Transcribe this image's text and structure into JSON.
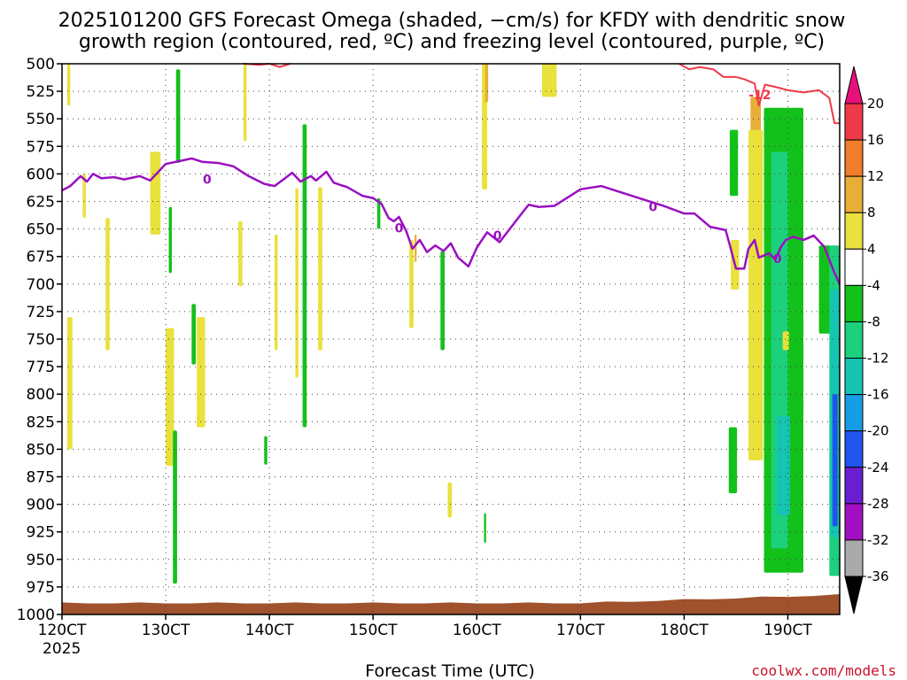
{
  "chart_data": {
    "type": "heatmap",
    "title_line1": "2025101200 GFS Forecast Omega (shaded, −cm/s) for KFDY with dendritic snow",
    "title_line2": "growth region (contoured, red, ºC) and freezing level (contoured, purple, ºC)",
    "xlabel": "Forecast Time (UTC)",
    "x_year_label": "2025",
    "watermark": "coolwx.com/models",
    "x_range": [
      0,
      7.5
    ],
    "y_range_hpa": [
      1000,
      500
    ],
    "y_ticks": [
      500,
      525,
      550,
      575,
      600,
      625,
      650,
      675,
      700,
      725,
      750,
      775,
      800,
      825,
      850,
      875,
      900,
      925,
      950,
      975,
      1000
    ],
    "x_ticks": [
      {
        "x": 0,
        "label": "120CT"
      },
      {
        "x": 1,
        "label": "130CT"
      },
      {
        "x": 2,
        "label": "140CT"
      },
      {
        "x": 3,
        "label": "150CT"
      },
      {
        "x": 4,
        "label": "160CT"
      },
      {
        "x": 5,
        "label": "170CT"
      },
      {
        "x": 6,
        "label": "180CT"
      },
      {
        "x": 7,
        "label": "190CT"
      }
    ],
    "grid": true,
    "colorbar": {
      "levels": [
        20,
        16,
        12,
        8,
        4,
        -4,
        -8,
        -12,
        -16,
        -20,
        -24,
        -28,
        -32,
        -36
      ],
      "colors": [
        "#ee3a48",
        "#ef7d2a",
        "#e7ae38",
        "#e9e13c",
        "#ffffff",
        "#13c11b",
        "#1cd07e",
        "#15c4b3",
        "#179de6",
        "#1f55ee",
        "#6a1ed2",
        "#a20fc0",
        "#aaaaaa"
      ],
      "top_arrow_color": "#e8107a",
      "bottom_arrow_color": "#000000"
    },
    "freezing_level_label": "0",
    "dgz_label": "-12",
    "freezing_level": [
      [
        0.0,
        615
      ],
      [
        0.08,
        611
      ],
      [
        0.18,
        602
      ],
      [
        0.24,
        607
      ],
      [
        0.3,
        600
      ],
      [
        0.38,
        604
      ],
      [
        0.5,
        603
      ],
      [
        0.6,
        605
      ],
      [
        0.75,
        602
      ],
      [
        0.85,
        606
      ],
      [
        1.0,
        591
      ],
      [
        1.15,
        588
      ],
      [
        1.25,
        586
      ],
      [
        1.35,
        589
      ],
      [
        1.5,
        590
      ],
      [
        1.65,
        593
      ],
      [
        1.8,
        602
      ],
      [
        1.95,
        609
      ],
      [
        2.05,
        611
      ],
      [
        2.15,
        604
      ],
      [
        2.22,
        599
      ],
      [
        2.3,
        607
      ],
      [
        2.4,
        602
      ],
      [
        2.45,
        606
      ],
      [
        2.55,
        598
      ],
      [
        2.62,
        608
      ],
      [
        2.75,
        612
      ],
      [
        2.9,
        620
      ],
      [
        3.0,
        622
      ],
      [
        3.08,
        627
      ],
      [
        3.15,
        640
      ],
      [
        3.2,
        643
      ],
      [
        3.25,
        639
      ],
      [
        3.32,
        652
      ],
      [
        3.38,
        668
      ],
      [
        3.45,
        660
      ],
      [
        3.52,
        671
      ],
      [
        3.6,
        665
      ],
      [
        3.68,
        670
      ],
      [
        3.75,
        663
      ],
      [
        3.82,
        676
      ],
      [
        3.92,
        684
      ],
      [
        4.0,
        667
      ],
      [
        4.1,
        653
      ],
      [
        4.22,
        662
      ],
      [
        4.4,
        640
      ],
      [
        4.5,
        628
      ],
      [
        4.6,
        630
      ],
      [
        4.75,
        629
      ],
      [
        4.9,
        620
      ],
      [
        5.0,
        614
      ],
      [
        5.2,
        611
      ],
      [
        5.4,
        617
      ],
      [
        5.6,
        623
      ],
      [
        5.8,
        629
      ],
      [
        6.0,
        636
      ],
      [
        6.1,
        636
      ],
      [
        6.25,
        648
      ],
      [
        6.4,
        651
      ],
      [
        6.45,
        668
      ],
      [
        6.5,
        686
      ],
      [
        6.58,
        686
      ],
      [
        6.62,
        668
      ],
      [
        6.68,
        660
      ],
      [
        6.72,
        676
      ],
      [
        6.82,
        672
      ],
      [
        6.88,
        678
      ],
      [
        6.93,
        667
      ],
      [
        6.98,
        660
      ],
      [
        7.05,
        657
      ],
      [
        7.15,
        660
      ],
      [
        7.25,
        656
      ],
      [
        7.35,
        666
      ],
      [
        7.45,
        690
      ],
      [
        7.5,
        700
      ]
    ],
    "dendritic_contour": [
      [
        5.95,
        500
      ],
      [
        6.05,
        505
      ],
      [
        6.15,
        503
      ],
      [
        6.28,
        505
      ],
      [
        6.38,
        512
      ],
      [
        6.5,
        512
      ],
      [
        6.58,
        514
      ],
      [
        6.68,
        518
      ],
      [
        6.72,
        538
      ],
      [
        6.78,
        519
      ],
      [
        6.88,
        521
      ],
      [
        7.0,
        524
      ],
      [
        7.15,
        526
      ],
      [
        7.3,
        524
      ],
      [
        7.4,
        531
      ],
      [
        7.45,
        554
      ],
      [
        7.5,
        554
      ]
    ],
    "dendritic_contour_2": [
      [
        1.75,
        500
      ],
      [
        1.9,
        501
      ],
      [
        2.0,
        500
      ],
      [
        2.1,
        503
      ],
      [
        2.2,
        500
      ]
    ],
    "omega_regions": [
      {
        "x": 0.05,
        "w": 0.03,
        "top": 500,
        "bot": 538,
        "c": "#e9e13c"
      },
      {
        "x": 0.2,
        "w": 0.03,
        "top": 600,
        "bot": 640,
        "c": "#e9e13c"
      },
      {
        "x": 0.42,
        "w": 0.04,
        "top": 640,
        "bot": 760,
        "c": "#e9e13c"
      },
      {
        "x": 0.05,
        "w": 0.05,
        "top": 730,
        "bot": 850,
        "c": "#e9e13c"
      },
      {
        "x": 0.85,
        "w": 0.1,
        "top": 580,
        "bot": 655,
        "c": "#e9e13c"
      },
      {
        "x": 1.0,
        "w": 0.08,
        "top": 740,
        "bot": 865,
        "c": "#e9e13c"
      },
      {
        "x": 1.03,
        "w": 0.03,
        "top": 630,
        "bot": 690,
        "c": "#13c11b"
      },
      {
        "x": 1.07,
        "w": 0.04,
        "top": 833,
        "bot": 972,
        "c": "#13c11b"
      },
      {
        "x": 1.1,
        "w": 0.04,
        "top": 505,
        "bot": 590,
        "c": "#13c11b"
      },
      {
        "x": 1.25,
        "w": 0.04,
        "top": 718,
        "bot": 773,
        "c": "#13c11b"
      },
      {
        "x": 1.3,
        "w": 0.08,
        "top": 730,
        "bot": 830,
        "c": "#e9e13c"
      },
      {
        "x": 1.7,
        "w": 0.04,
        "top": 643,
        "bot": 702,
        "c": "#e9e13c"
      },
      {
        "x": 1.75,
        "w": 0.03,
        "top": 500,
        "bot": 570,
        "c": "#e9e13c"
      },
      {
        "x": 2.05,
        "w": 0.03,
        "top": 655,
        "bot": 760,
        "c": "#e9e13c"
      },
      {
        "x": 2.25,
        "w": 0.03,
        "top": 613,
        "bot": 785,
        "c": "#e9e13c"
      },
      {
        "x": 2.32,
        "w": 0.04,
        "top": 555,
        "bot": 830,
        "c": "#13c11b"
      },
      {
        "x": 2.47,
        "w": 0.04,
        "top": 612,
        "bot": 760,
        "c": "#e9e13c"
      },
      {
        "x": 1.95,
        "w": 0.03,
        "top": 838,
        "bot": 864,
        "c": "#13c11b"
      },
      {
        "x": 3.04,
        "w": 0.03,
        "top": 622,
        "bot": 650,
        "c": "#13c11b"
      },
      {
        "x": 3.35,
        "w": 0.04,
        "top": 660,
        "bot": 740,
        "c": "#e9e13c"
      },
      {
        "x": 3.4,
        "w": 0.02,
        "top": 655,
        "bot": 680,
        "c": "#e7ae38"
      },
      {
        "x": 3.65,
        "w": 0.04,
        "top": 670,
        "bot": 760,
        "c": "#13c11b"
      },
      {
        "x": 3.72,
        "w": 0.04,
        "top": 880,
        "bot": 912,
        "c": "#e9e13c"
      },
      {
        "x": 4.05,
        "w": 0.05,
        "top": 500,
        "bot": 614,
        "c": "#e9e13c"
      },
      {
        "x": 4.08,
        "w": 0.03,
        "top": 500,
        "bot": 535,
        "c": "#e7ae38"
      },
      {
        "x": 4.63,
        "w": 0.14,
        "top": 500,
        "bot": 530,
        "c": "#e9e13c"
      },
      {
        "x": 4.07,
        "w": 0.02,
        "top": 908,
        "bot": 935,
        "c": "#13c11b"
      },
      {
        "x": 6.44,
        "w": 0.08,
        "top": 560,
        "bot": 620,
        "c": "#13c11b"
      },
      {
        "x": 6.45,
        "w": 0.08,
        "top": 660,
        "bot": 705,
        "c": "#e9e13c"
      },
      {
        "x": 6.43,
        "w": 0.08,
        "top": 830,
        "bot": 890,
        "c": "#13c11b"
      },
      {
        "x": 6.64,
        "w": 0.1,
        "top": 530,
        "bot": 625,
        "c": "#e7ae38"
      },
      {
        "x": 6.62,
        "w": 0.14,
        "top": 560,
        "bot": 860,
        "c": "#e9e13c"
      },
      {
        "x": 6.77,
        "w": 0.38,
        "top": 540,
        "bot": 962,
        "c": "#13c11b"
      },
      {
        "x": 6.84,
        "w": 0.16,
        "top": 580,
        "bot": 940,
        "c": "#1cd07e"
      },
      {
        "x": 6.9,
        "w": 0.12,
        "top": 820,
        "bot": 910,
        "c": "#15c4b3"
      },
      {
        "x": 7.05,
        "w": 0.1,
        "top": 730,
        "bot": 820,
        "c": "#13c11b"
      },
      {
        "x": 6.95,
        "w": 0.06,
        "top": 743,
        "bot": 760,
        "c": "#e9e13c"
      },
      {
        "x": 7.3,
        "w": 0.12,
        "top": 665,
        "bot": 745,
        "c": "#13c11b"
      },
      {
        "x": 7.4,
        "w": 0.1,
        "top": 665,
        "bot": 965,
        "c": "#1cd07e"
      },
      {
        "x": 7.41,
        "w": 0.08,
        "top": 705,
        "bot": 930,
        "c": "#15c4b3"
      },
      {
        "x": 7.43,
        "w": 0.05,
        "top": 800,
        "bot": 920,
        "c": "#1f55ee"
      }
    ],
    "terrain_color": "#a0522d"
  }
}
